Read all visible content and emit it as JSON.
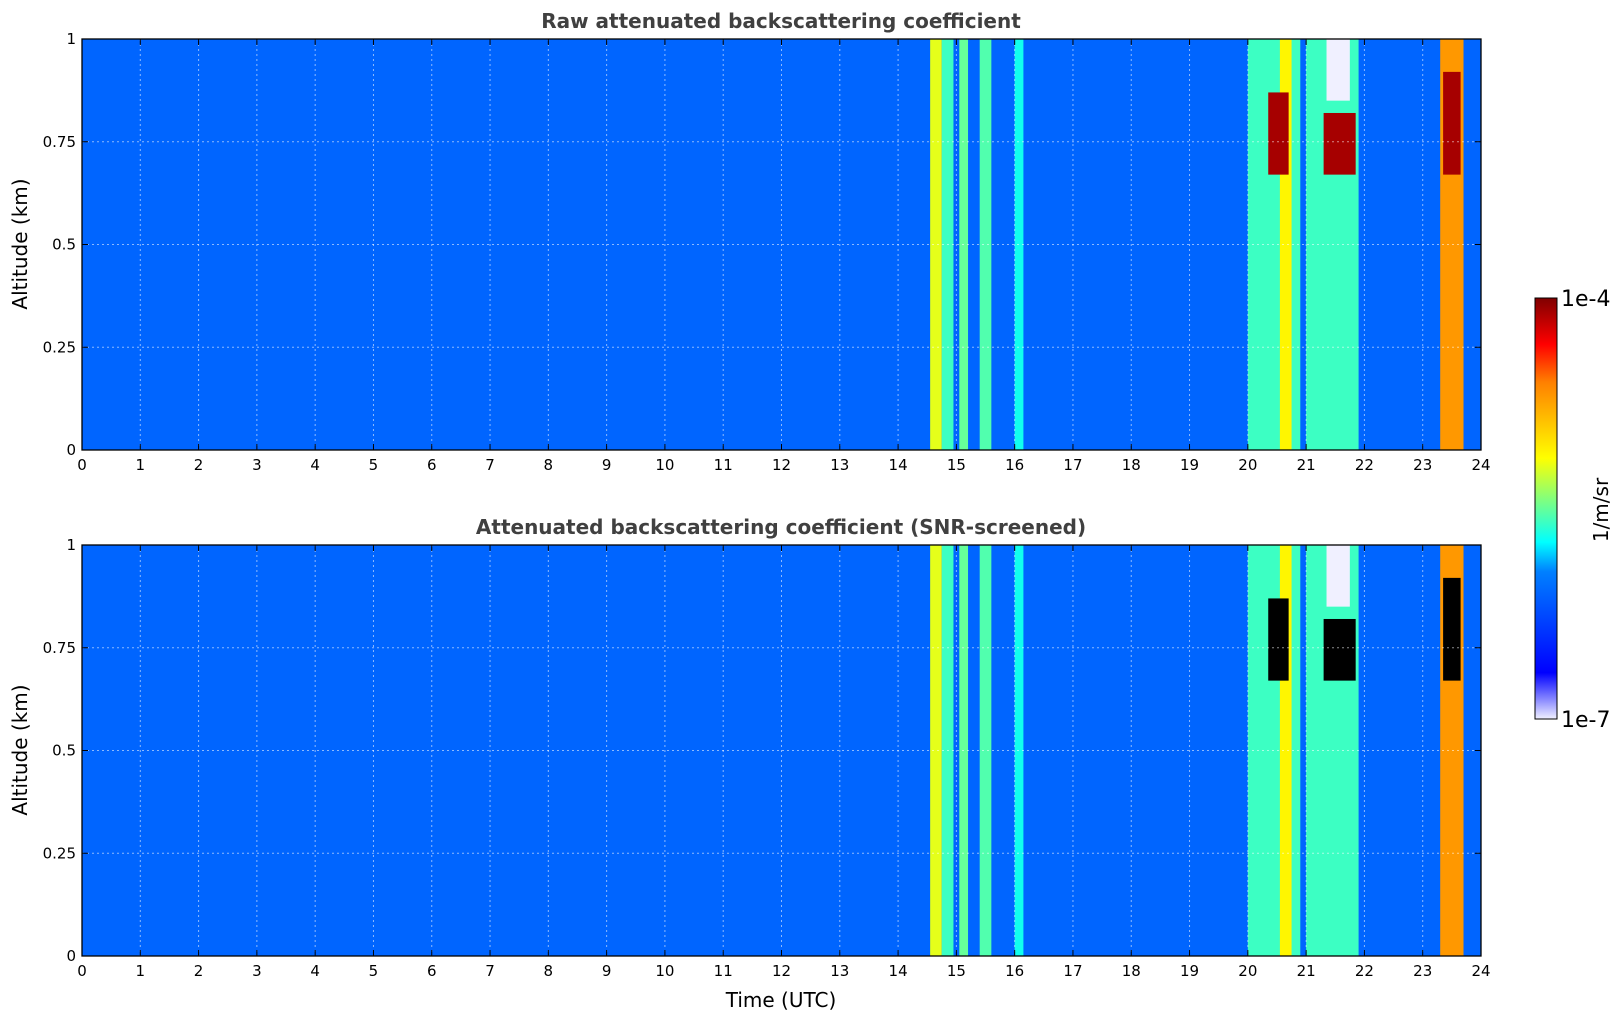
{
  "chart_data": [
    {
      "type": "heatmap",
      "title": "Raw attenuated backscattering coefficient",
      "xlabel": "",
      "ylabel": "Altitude (km)",
      "xlim": [
        0,
        24
      ],
      "ylim": [
        0,
        1
      ],
      "xticks": [
        "0",
        "1",
        "2",
        "3",
        "4",
        "5",
        "6",
        "7",
        "8",
        "9",
        "10",
        "11",
        "12",
        "13",
        "14",
        "15",
        "16",
        "17",
        "18",
        "19",
        "20",
        "21",
        "22",
        "23",
        "24"
      ],
      "yticks": [
        "0",
        "0.25",
        "0.5",
        "0.75",
        "1"
      ],
      "grid": true,
      "colormap": "jet",
      "screened": false,
      "background_log10": -6.1,
      "features": [
        {
          "x0": 14.55,
          "x1": 14.75,
          "y0": 0,
          "y1": 1,
          "log10": -5.2
        },
        {
          "x0": 14.75,
          "x1": 14.95,
          "y0": 0,
          "y1": 1,
          "log10": -5.6
        },
        {
          "x0": 15.05,
          "x1": 15.2,
          "y0": 0,
          "y1": 1,
          "log10": -5.5
        },
        {
          "x0": 15.4,
          "x1": 15.6,
          "y0": 0,
          "y1": 1,
          "log10": -5.55
        },
        {
          "x0": 16.0,
          "x1": 16.15,
          "y0": 0,
          "y1": 1,
          "log10": -5.7
        },
        {
          "x0": 20.0,
          "x1": 20.9,
          "y0": 0,
          "y1": 1,
          "log10": -5.6
        },
        {
          "x0": 20.55,
          "x1": 20.75,
          "y0": 0,
          "y1": 1,
          "log10": -5.1
        },
        {
          "x0": 20.35,
          "x1": 20.7,
          "y0": 0.67,
          "y1": 0.87,
          "log10": -4.1
        },
        {
          "x0": 21.0,
          "x1": 21.9,
          "y0": 0.0,
          "y1": 1,
          "log10": -5.6
        },
        {
          "x0": 21.3,
          "x1": 21.85,
          "y0": 0.67,
          "y1": 0.82,
          "log10": -4.1
        },
        {
          "x0": 21.35,
          "x1": 21.75,
          "y0": 0.85,
          "y1": 1.0,
          "log10": -7.0
        },
        {
          "x0": 23.3,
          "x1": 23.7,
          "y0": 0,
          "y1": 1,
          "log10": -4.7
        },
        {
          "x0": 23.35,
          "x1": 23.65,
          "y0": 0.67,
          "y1": 0.92,
          "log10": -4.1
        }
      ]
    },
    {
      "type": "heatmap",
      "title": "Attenuated backscattering coefficient (SNR-screened)",
      "xlabel": "Time (UTC)",
      "ylabel": "Altitude (km)",
      "xlim": [
        0,
        24
      ],
      "ylim": [
        0,
        1
      ],
      "xticks": [
        "0",
        "1",
        "2",
        "3",
        "4",
        "5",
        "6",
        "7",
        "8",
        "9",
        "10",
        "11",
        "12",
        "13",
        "14",
        "15",
        "16",
        "17",
        "18",
        "19",
        "20",
        "21",
        "22",
        "23",
        "24"
      ],
      "yticks": [
        "0",
        "0.25",
        "0.5",
        "0.75",
        "1"
      ],
      "grid": true,
      "colormap": "jet",
      "screened": true,
      "background_log10": -6.1,
      "features": [
        {
          "x0": 14.55,
          "x1": 14.75,
          "y0": 0,
          "y1": 1,
          "log10": -5.2
        },
        {
          "x0": 14.75,
          "x1": 14.95,
          "y0": 0,
          "y1": 1,
          "log10": -5.6
        },
        {
          "x0": 15.05,
          "x1": 15.2,
          "y0": 0,
          "y1": 1,
          "log10": -5.5
        },
        {
          "x0": 15.4,
          "x1": 15.6,
          "y0": 0,
          "y1": 1,
          "log10": -5.55
        },
        {
          "x0": 16.0,
          "x1": 16.15,
          "y0": 0,
          "y1": 1,
          "log10": -5.7
        },
        {
          "x0": 20.0,
          "x1": 20.9,
          "y0": 0,
          "y1": 1,
          "log10": -5.6
        },
        {
          "x0": 20.55,
          "x1": 20.75,
          "y0": 0,
          "y1": 1,
          "log10": -5.1
        },
        {
          "x0": 20.35,
          "x1": 20.7,
          "y0": 0.67,
          "y1": 0.87,
          "log10": null
        },
        {
          "x0": 21.0,
          "x1": 21.9,
          "y0": 0.0,
          "y1": 1,
          "log10": -5.6
        },
        {
          "x0": 21.3,
          "x1": 21.85,
          "y0": 0.67,
          "y1": 0.82,
          "log10": null
        },
        {
          "x0": 21.35,
          "x1": 21.75,
          "y0": 0.85,
          "y1": 1.0,
          "log10": -7.0
        },
        {
          "x0": 23.3,
          "x1": 23.7,
          "y0": 0,
          "y1": 1,
          "log10": -4.7
        },
        {
          "x0": 23.35,
          "x1": 23.65,
          "y0": 0.67,
          "y1": 0.92,
          "log10": null
        }
      ]
    }
  ],
  "colorbar": {
    "max_label": "1e-4",
    "min_label": "1e-7",
    "label": "1/m/sr",
    "log10_range": [
      -7,
      -4
    ]
  },
  "colors": {
    "screened_fill": "#000000",
    "title": "#404040",
    "grid": "#ffffff"
  }
}
